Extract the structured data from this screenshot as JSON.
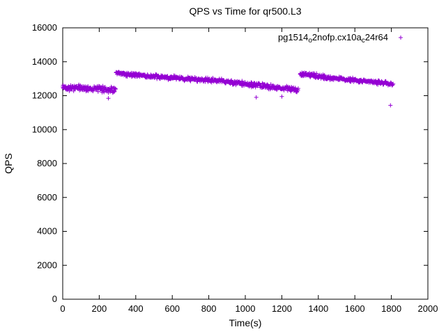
{
  "page": {
    "background": "#ffffff",
    "border_color": "#000000",
    "text_color": "#000000"
  },
  "chart_data": {
    "type": "scatter",
    "title": "QPS vs Time for qr500.L3",
    "xlabel": "Time(s)",
    "ylabel": "QPS",
    "xlim": [
      0,
      2000
    ],
    "ylim": [
      0,
      16000
    ],
    "xticks": [
      0,
      200,
      400,
      600,
      800,
      1000,
      1200,
      1400,
      1600,
      1800,
      2000
    ],
    "yticks": [
      0,
      2000,
      4000,
      6000,
      8000,
      10000,
      12000,
      14000,
      16000
    ],
    "grid": false,
    "marker": "+",
    "color": "#9400D3",
    "legend": {
      "position": "top-right-inside",
      "label_plain": "pg1514_o2nofp.cx10a_c24r64",
      "parts": [
        {
          "text": "pg1514",
          "sub": false
        },
        {
          "text": "o",
          "sub": true
        },
        {
          "text": "2nofp.cx10a",
          "sub": false
        },
        {
          "text": "c",
          "sub": true
        },
        {
          "text": "24r64",
          "sub": false
        }
      ],
      "marker": "+"
    },
    "sampling": {
      "interval_s": 2,
      "seed": 42,
      "marker_half_px": 3
    },
    "series": [
      {
        "name": "pg1514_o2nofp.cx10a_c24r64",
        "color": "#9400D3",
        "segments": [
          {
            "t0": 0,
            "t1": 290,
            "q0": 12500,
            "q1": 12350,
            "jitter": 220
          },
          {
            "t0": 292,
            "t1": 450,
            "q0": 13300,
            "q1": 13200,
            "jitter": 150
          },
          {
            "t0": 452,
            "t1": 900,
            "q0": 13150,
            "q1": 12850,
            "jitter": 160
          },
          {
            "t0": 902,
            "t1": 1290,
            "q0": 12800,
            "q1": 12350,
            "jitter": 170
          },
          {
            "t0": 1300,
            "t1": 1460,
            "q0": 13300,
            "q1": 13050,
            "jitter": 160
          },
          {
            "t0": 1462,
            "t1": 1810,
            "q0": 13050,
            "q1": 12700,
            "jitter": 140
          }
        ],
        "outliers": [
          {
            "t": 250,
            "qps": 11850
          },
          {
            "t": 1060,
            "qps": 11900
          },
          {
            "t": 1200,
            "qps": 11950
          },
          {
            "t": 1795,
            "qps": 11430
          }
        ]
      }
    ]
  }
}
